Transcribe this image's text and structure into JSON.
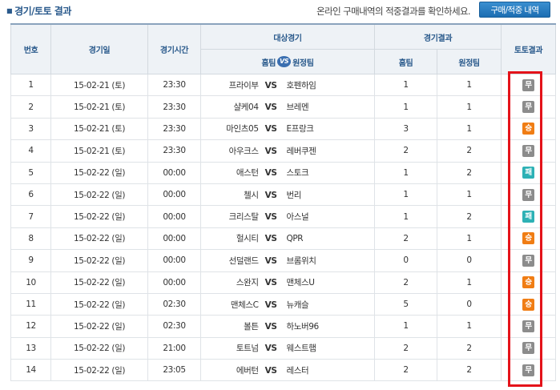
{
  "header": {
    "title": "경기/토토 결과",
    "notice": "온라인 구매내역의 적중결과를 확인하세요.",
    "button_label": "구매/적중 내역"
  },
  "columns": {
    "no": "번호",
    "date": "경기일",
    "time": "경기시간",
    "match": "대상경기",
    "home_team": "홈팀",
    "away_team": "원정팀",
    "vs_icon": "VS",
    "score": "경기결과",
    "home_score": "홈팀",
    "away_score": "원정팀",
    "toto": "토토결과"
  },
  "colors": {
    "draw": "#8c8c8c",
    "win": "#f07d14",
    "lose": "#2db1b5",
    "highlight": "#e4131a"
  },
  "rows": [
    {
      "no": "1",
      "date": "15-02-21 (토)",
      "time": "23:30",
      "home": "프라이부",
      "vs": "VS",
      "away": "호펜하임",
      "hs": "1",
      "as": "1",
      "result": "무",
      "type": "draw"
    },
    {
      "no": "2",
      "date": "15-02-21 (토)",
      "time": "23:30",
      "home": "샬케04",
      "vs": "VS",
      "away": "브레멘",
      "hs": "1",
      "as": "1",
      "result": "무",
      "type": "draw"
    },
    {
      "no": "3",
      "date": "15-02-21 (토)",
      "time": "23:30",
      "home": "마인츠05",
      "vs": "VS",
      "away": "E프랑크",
      "hs": "3",
      "as": "1",
      "result": "승",
      "type": "win"
    },
    {
      "no": "4",
      "date": "15-02-21 (토)",
      "time": "23:30",
      "home": "아우크스",
      "vs": "VS",
      "away": "레버쿠젠",
      "hs": "2",
      "as": "2",
      "result": "무",
      "type": "draw"
    },
    {
      "no": "5",
      "date": "15-02-22 (일)",
      "time": "00:00",
      "home": "애스턴",
      "vs": "VS",
      "away": "스토크",
      "hs": "1",
      "as": "2",
      "result": "패",
      "type": "lose"
    },
    {
      "no": "6",
      "date": "15-02-22 (일)",
      "time": "00:00",
      "home": "첼시",
      "vs": "VS",
      "away": "번리",
      "hs": "1",
      "as": "1",
      "result": "무",
      "type": "draw"
    },
    {
      "no": "7",
      "date": "15-02-22 (일)",
      "time": "00:00",
      "home": "크리스탈",
      "vs": "VS",
      "away": "아스널",
      "hs": "1",
      "as": "2",
      "result": "패",
      "type": "lose"
    },
    {
      "no": "8",
      "date": "15-02-22 (일)",
      "time": "00:00",
      "home": "헐시티",
      "vs": "VS",
      "away": "QPR",
      "hs": "2",
      "as": "1",
      "result": "승",
      "type": "win"
    },
    {
      "no": "9",
      "date": "15-02-22 (일)",
      "time": "00:00",
      "home": "선덜랜드",
      "vs": "VS",
      "away": "브롬위치",
      "hs": "0",
      "as": "0",
      "result": "무",
      "type": "draw"
    },
    {
      "no": "10",
      "date": "15-02-22 (일)",
      "time": "00:00",
      "home": "스완지",
      "vs": "VS",
      "away": "맨체스U",
      "hs": "2",
      "as": "1",
      "result": "승",
      "type": "win"
    },
    {
      "no": "11",
      "date": "15-02-22 (일)",
      "time": "02:30",
      "home": "맨체스C",
      "vs": "VS",
      "away": "뉴캐슬",
      "hs": "5",
      "as": "0",
      "result": "승",
      "type": "win"
    },
    {
      "no": "12",
      "date": "15-02-22 (일)",
      "time": "02:30",
      "home": "볼튼",
      "vs": "VS",
      "away": "하노버96",
      "hs": "1",
      "as": "1",
      "result": "무",
      "type": "draw"
    },
    {
      "no": "13",
      "date": "15-02-22 (일)",
      "time": "21:00",
      "home": "토트넘",
      "vs": "VS",
      "away": "웨스트햄",
      "hs": "2",
      "as": "2",
      "result": "무",
      "type": "draw"
    },
    {
      "no": "14",
      "date": "15-02-22 (일)",
      "time": "23:05",
      "home": "에버턴",
      "vs": "VS",
      "away": "레스터",
      "hs": "2",
      "as": "2",
      "result": "무",
      "type": "draw"
    }
  ]
}
